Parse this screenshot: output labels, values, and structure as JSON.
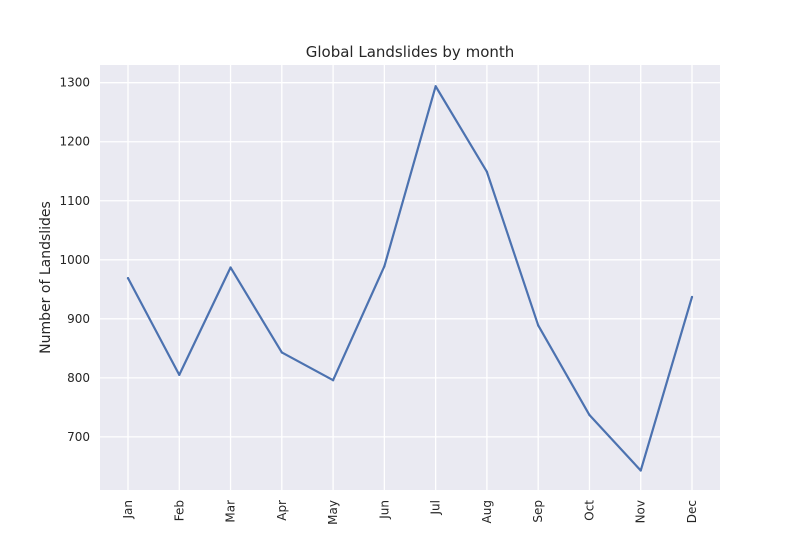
{
  "chart_data": {
    "type": "line",
    "title": "Global Landslides by month",
    "xlabel": "",
    "ylabel": "Number of Landslides",
    "categories": [
      "Jan",
      "Feb",
      "Mar",
      "Apr",
      "May",
      "Jun",
      "Jul",
      "Aug",
      "Sep",
      "Oct",
      "Nov",
      "Dec"
    ],
    "series": [
      {
        "values": [
          969,
          805,
          987,
          843,
          796,
          989,
          1294,
          1149,
          889,
          737,
          643,
          937
        ],
        "color": "#4c72b0"
      }
    ],
    "ylim": [
      610,
      1330
    ],
    "yticks": [
      700,
      800,
      900,
      1000,
      1100,
      1200,
      1300
    ],
    "grid": true,
    "legend": "none",
    "background": "#eaeaf2"
  }
}
